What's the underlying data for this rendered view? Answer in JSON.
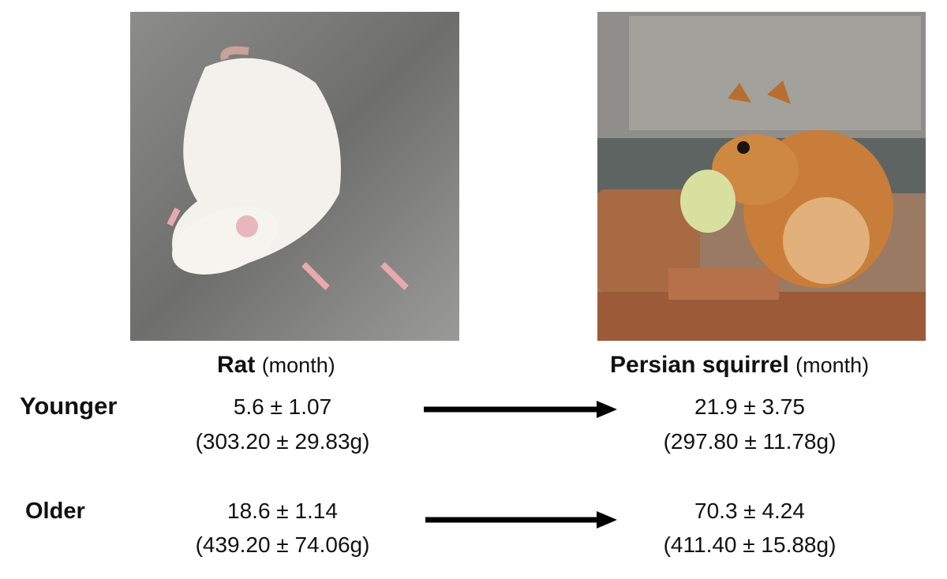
{
  "columns": [
    {
      "name": "Rat",
      "unit": "(month)"
    },
    {
      "name": "Persian squirrel",
      "unit": "(month)"
    }
  ],
  "rows": [
    {
      "label": "Younger",
      "rat": [
        "5.6 ± 1.07",
        "(303.20 ± 29.83g)"
      ],
      "squirrel": [
        "21.9 ± 3.75",
        "(297.80 ± 11.78g)"
      ]
    },
    {
      "label": "Older",
      "rat": [
        "18.6 ± 1.14",
        "(439.20 ± 74.06g)"
      ],
      "squirrel": [
        "70.3 ± 4.24",
        "(411.40 ± 15.88g)"
      ]
    }
  ]
}
